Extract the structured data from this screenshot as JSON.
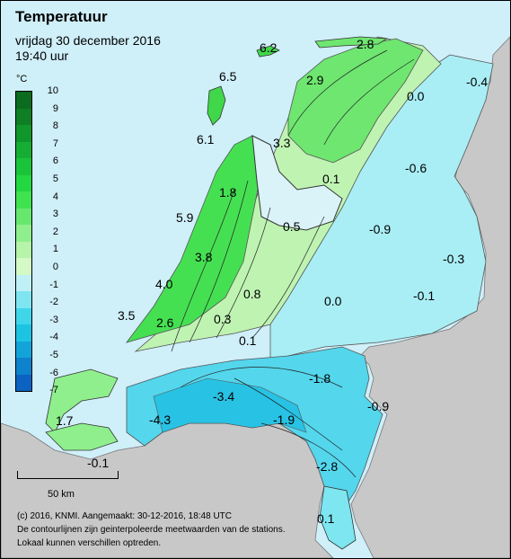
{
  "map": {
    "title": "Temperatuur",
    "date": "vrijdag 30 december 2016",
    "time": "19:40 uur",
    "unit": "°C"
  },
  "legend": {
    "ticks": [
      "10",
      "9",
      "8",
      "7",
      "6",
      "5",
      "4",
      "3",
      "2",
      "1",
      "0",
      "-1",
      "-2",
      "-3",
      "-4",
      "-5",
      "-6",
      "-7"
    ],
    "colors": [
      "#0b6b1e",
      "#0e7f24",
      "#11962b",
      "#15ad33",
      "#1ac43a",
      "#22d741",
      "#40e24f",
      "#66e86f",
      "#8fef8c",
      "#b5f4a9",
      "#d4f9c6",
      "#bff0f5",
      "#7fe5f1",
      "#3fd6ea",
      "#1cc4e2",
      "#12a4d8",
      "#0e82cc",
      "#0b62c0"
    ]
  },
  "map_colors": {
    "land_gray": "#c8c8c8",
    "sea": "#cfeff9",
    "lake": "#d9f3f8"
  },
  "stations": [
    {
      "value": "6.2"
    },
    {
      "value": "2.8"
    },
    {
      "value": "6.5"
    },
    {
      "value": "2.9"
    },
    {
      "value": "0.0"
    },
    {
      "value": "-0.4"
    },
    {
      "value": "6.1"
    },
    {
      "value": "3.3"
    },
    {
      "value": "-0.6"
    },
    {
      "value": "0.1"
    },
    {
      "value": "1.8"
    },
    {
      "value": "5.9"
    },
    {
      "value": "0.5"
    },
    {
      "value": "-0.9"
    },
    {
      "value": "3.8"
    },
    {
      "value": "-0.3"
    },
    {
      "value": "4.0"
    },
    {
      "value": "0.8"
    },
    {
      "value": "-0.1"
    },
    {
      "value": "0.0"
    },
    {
      "value": "3.5"
    },
    {
      "value": "2.6"
    },
    {
      "value": "0.3"
    },
    {
      "value": "0.1"
    },
    {
      "value": "-1.8"
    },
    {
      "value": "-3.4"
    },
    {
      "value": "-0.9"
    },
    {
      "value": "-1.9"
    },
    {
      "value": "1.7"
    },
    {
      "value": "-4.3"
    },
    {
      "value": "-0.1"
    },
    {
      "value": "-2.8"
    },
    {
      "value": "0.1"
    }
  ],
  "scale": {
    "label": "50 km"
  },
  "footer": {
    "line1": "(c) 2016, KNMI. Aangemaakt: 30-12-2016, 18:48 UTC",
    "line2": "De contourlijnen zijn geinterpoleerde meetwaarden van de stations.",
    "line3": "Lokaal kunnen verschillen optreden."
  }
}
